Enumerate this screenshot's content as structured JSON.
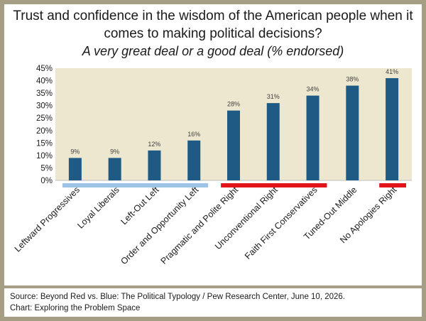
{
  "title": "Trust and confidence in the wisdom of the American people when it comes to making political decisions?",
  "subtitle": "A very great deal or a good deal (% endorsed)",
  "source_line": "Source: Beyond Red vs. Blue: The Political Typology / Pew Research Center, June 10, 2026.",
  "chart_line": "Chart: Exploring the Problem Space",
  "colors": {
    "bar": "#1f5a85",
    "plot_background": "#ede7cf",
    "left_group": "#9dc3e6",
    "right_group": "#e2141b",
    "frame": "#a59e85"
  },
  "chart_data": {
    "type": "bar",
    "title": "Trust and confidence in the wisdom of the American people when it comes to making political decisions?",
    "subtitle": "A very great deal or a good deal (% endorsed)",
    "categories": [
      "Leftward Progressives",
      "Loyal Liberals",
      "Left-Out Left",
      "Order and Opportunity Left",
      "Pragmatic and Polite Right",
      "Unconventional Right",
      "Faith First Conservatives",
      "Tuned-Out Middle",
      "No Apologies Right"
    ],
    "values": [
      9,
      9,
      12,
      16,
      28,
      31,
      34,
      38,
      41
    ],
    "data_labels": [
      "9%",
      "9%",
      "12%",
      "16%",
      "28%",
      "31%",
      "34%",
      "38%",
      "41%"
    ],
    "ylim": [
      0,
      45
    ],
    "yticks": [
      "0%",
      "5%",
      "10%",
      "15%",
      "20%",
      "25%",
      "30%",
      "35%",
      "40%",
      "45%"
    ],
    "grid": false,
    "groups": [
      {
        "name": "left",
        "color": "#9dc3e6",
        "from": 0,
        "to": 3
      },
      {
        "name": "right",
        "color": "#e2141b",
        "from": 4,
        "to": 6
      },
      {
        "name": "right",
        "color": "#e2141b",
        "from": 8,
        "to": 8
      }
    ]
  }
}
